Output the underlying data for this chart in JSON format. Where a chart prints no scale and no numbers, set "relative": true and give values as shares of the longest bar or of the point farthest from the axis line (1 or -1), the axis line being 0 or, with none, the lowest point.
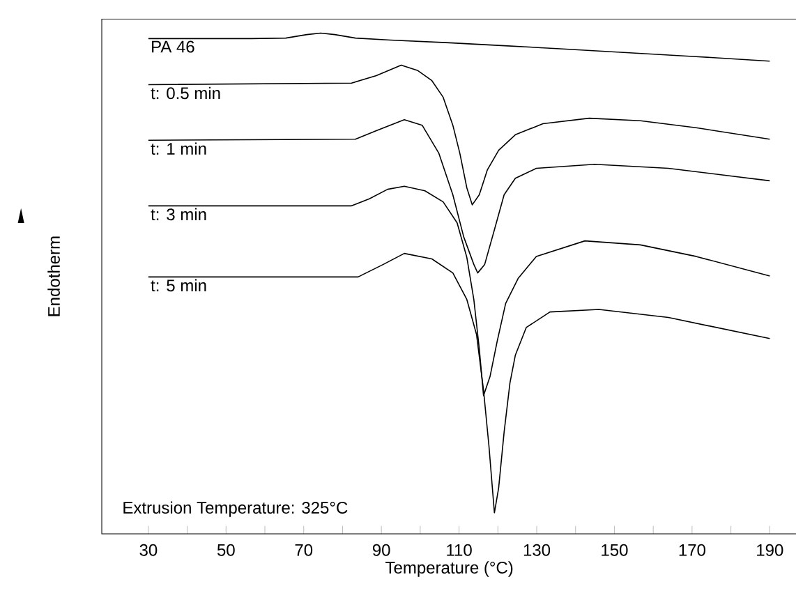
{
  "chart_data": {
    "type": "line",
    "relative": true,
    "xlabel": "Temperature (°C)",
    "ylabel": "Endotherm",
    "legend": false,
    "grid": false,
    "marker": "none",
    "line_style": "solid",
    "xlim": [
      18,
      197
    ],
    "xticks": [
      30,
      {
        "value": 40,
        "label": null
      },
      50,
      {
        "value": 60,
        "label": null
      },
      70,
      {
        "value": 80,
        "label": null
      },
      90,
      {
        "value": 100,
        "label": null
      },
      110,
      {
        "value": 120,
        "label": null
      },
      130,
      {
        "value": 140,
        "label": null
      },
      150,
      {
        "value": 160,
        "label": null
      },
      170,
      {
        "value": 180,
        "label": null
      },
      190
    ],
    "annotations": [
      "Extrusion Temperature: 325°C"
    ],
    "series": [
      {
        "name": "PA 46",
        "color": "#000000",
        "x": [
          30,
          56.5,
          65.4,
          70.8,
          74.4,
          78.0,
          83.3,
          92.3,
          106.6,
          120.9,
          135.2,
          153.1,
          171.0,
          190
        ],
        "values": [
          0.989,
          0.989,
          0.99,
          0.997,
          1.0,
          0.997,
          0.99,
          0.986,
          0.981,
          0.975,
          0.969,
          0.961,
          0.953,
          0.944
        ]
      },
      {
        "name": "t: 0.5 min",
        "color": "#000000",
        "x": [
          30,
          82.3,
          88.7,
          95.1,
          99.4,
          103.0,
          105.9,
          108.4,
          110.2,
          112.0,
          113.4,
          115.2,
          117.3,
          120.2,
          124.5,
          131.6,
          143.5,
          156.7,
          171.0,
          190
        ],
        "values": [
          0.897,
          0.9,
          0.915,
          0.936,
          0.925,
          0.905,
          0.872,
          0.816,
          0.76,
          0.691,
          0.657,
          0.677,
          0.727,
          0.766,
          0.797,
          0.819,
          0.83,
          0.825,
          0.811,
          0.788
        ]
      },
      {
        "name": "t: 1 min",
        "color": "#000000",
        "x": [
          30,
          83.3,
          88.7,
          95.9,
          100.5,
          104.8,
          108.4,
          111.2,
          113.8,
          114.8,
          116.6,
          119.1,
          121.6,
          124.5,
          129.9,
          144.9,
          163.9,
          190
        ],
        "values": [
          0.786,
          0.788,
          0.805,
          0.827,
          0.816,
          0.76,
          0.677,
          0.593,
          0.538,
          0.521,
          0.538,
          0.607,
          0.677,
          0.71,
          0.73,
          0.738,
          0.73,
          0.705
        ]
      },
      {
        "name": "t: 3 min",
        "color": "#000000",
        "x": [
          30,
          82.3,
          86.9,
          91.6,
          95.9,
          101.2,
          105.9,
          109.5,
          112.0,
          113.8,
          115.2,
          116.3,
          118.0,
          119.8,
          122.0,
          125.2,
          129.9,
          142.4,
          156.7,
          171.0,
          190
        ],
        "values": [
          0.655,
          0.655,
          0.669,
          0.688,
          0.694,
          0.685,
          0.663,
          0.621,
          0.552,
          0.468,
          0.37,
          0.276,
          0.315,
          0.384,
          0.46,
          0.51,
          0.554,
          0.585,
          0.577,
          0.554,
          0.515
        ]
      },
      {
        "name": "t: 5 min",
        "color": "#000000",
        "x": [
          30,
          84.0,
          90.5,
          95.9,
          103.0,
          108.4,
          112.0,
          114.5,
          116.3,
          117.7,
          119.1,
          120.2,
          121.6,
          123.1,
          124.5,
          127.3,
          133.4,
          146.0,
          163.9,
          190
        ],
        "values": [
          0.513,
          0.513,
          0.538,
          0.56,
          0.549,
          0.521,
          0.468,
          0.398,
          0.287,
          0.175,
          0.042,
          0.092,
          0.203,
          0.301,
          0.357,
          0.412,
          0.443,
          0.448,
          0.432,
          0.39
        ]
      }
    ]
  }
}
